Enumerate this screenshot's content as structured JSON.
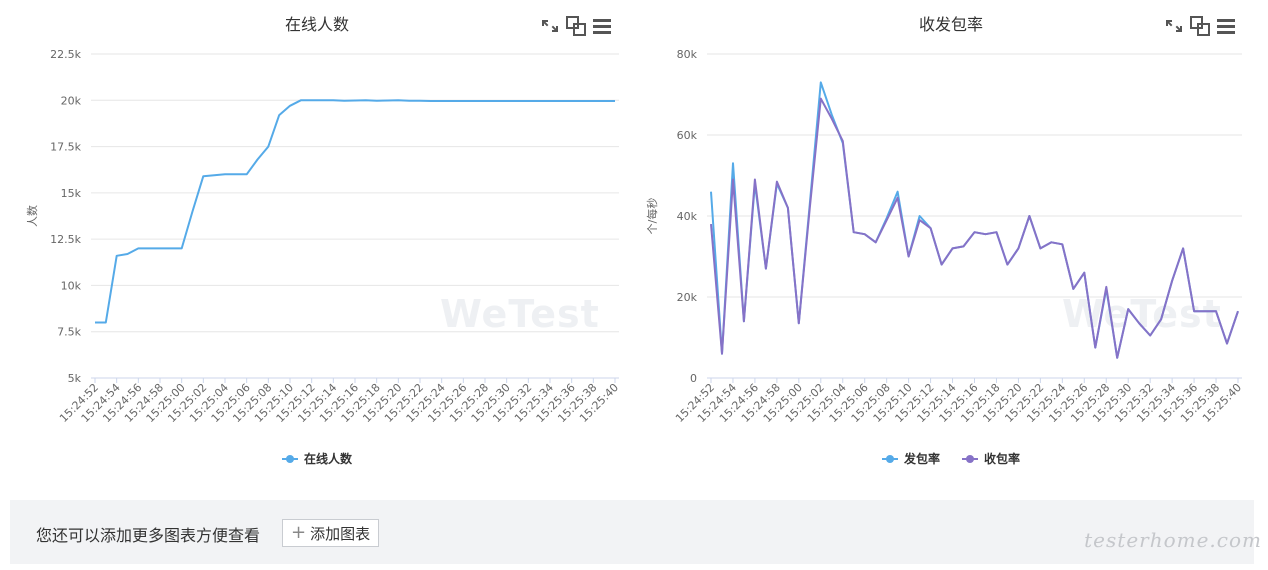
{
  "colors": {
    "blue": "#55aae8",
    "purple": "#8672c7"
  },
  "left": {
    "toolbar_icons": [
      "expand-icon",
      "copy-icon",
      "menu-icon"
    ],
    "watermark": "WeTest"
  },
  "right": {
    "toolbar_icons": [
      "expand-icon",
      "copy-icon",
      "menu-icon"
    ],
    "watermark": "WeTest"
  },
  "bottom": {
    "hint": "您还可以添加更多图表方便查看",
    "add_button": "添加图表",
    "plus_icon": "+"
  },
  "site_watermark": "testerhome.com",
  "chart_data": [
    {
      "type": "line",
      "title": "在线人数",
      "xlabel": "",
      "ylabel": "人数",
      "ylim": [
        5000,
        22500
      ],
      "ytick_labels": [
        "5k",
        "7.5k",
        "10k",
        "12.5k",
        "15k",
        "17.5k",
        "20k",
        "22.5k"
      ],
      "categories": [
        "15:24:52",
        "15:24:54",
        "15:24:56",
        "15:24:58",
        "15:25:00",
        "15:25:02",
        "15:25:04",
        "15:25:06",
        "15:25:08",
        "15:25:10",
        "15:25:12",
        "15:25:14",
        "15:25:16",
        "15:25:18",
        "15:25:20",
        "15:25:22",
        "15:25:24",
        "15:25:26",
        "15:25:28",
        "15:25:30",
        "15:25:32",
        "15:25:34",
        "15:25:36",
        "15:25:38",
        "15:25:40"
      ],
      "x": [
        "15:24:52",
        "15:24:53",
        "15:24:54",
        "15:24:55",
        "15:24:56",
        "15:24:57",
        "15:24:58",
        "15:24:59",
        "15:25:00",
        "15:25:01",
        "15:25:02",
        "15:25:03",
        "15:25:04",
        "15:25:05",
        "15:25:06",
        "15:25:07",
        "15:25:08",
        "15:25:09",
        "15:25:10",
        "15:25:11",
        "15:25:12",
        "15:25:13",
        "15:25:14",
        "15:25:15",
        "15:25:16",
        "15:25:17",
        "15:25:18",
        "15:25:19",
        "15:25:20",
        "15:25:21",
        "15:25:22",
        "15:25:23",
        "15:25:24",
        "15:25:25",
        "15:25:26",
        "15:25:27",
        "15:25:28",
        "15:25:29",
        "15:25:30",
        "15:25:31",
        "15:25:32",
        "15:25:33",
        "15:25:34",
        "15:25:35",
        "15:25:36",
        "15:25:37",
        "15:25:38",
        "15:25:39",
        "15:25:40"
      ],
      "series": [
        {
          "name": "在线人数",
          "color": "#55aae8",
          "values": [
            8000,
            8000,
            11600,
            11700,
            12000,
            12000,
            12000,
            12000,
            12000,
            14000,
            15900,
            15950,
            16000,
            16000,
            16000,
            16800,
            17500,
            19200,
            19700,
            20000,
            20000,
            20000,
            20000,
            19980,
            19990,
            20000,
            19980,
            19990,
            20000,
            19980,
            19970,
            19960,
            19960,
            19960,
            19960,
            19960,
            19960,
            19960,
            19960,
            19960,
            19960,
            19960,
            19960,
            19960,
            19960,
            19960,
            19960,
            19960,
            19960
          ]
        }
      ],
      "legend": "bottom-center"
    },
    {
      "type": "line",
      "title": "收发包率",
      "xlabel": "",
      "ylabel": "个/每秒",
      "ylim": [
        0,
        80000
      ],
      "ytick_labels": [
        "0",
        "20k",
        "40k",
        "60k",
        "80k"
      ],
      "categories": [
        "15:24:52",
        "15:24:54",
        "15:24:56",
        "15:24:58",
        "15:25:00",
        "15:25:02",
        "15:25:04",
        "15:25:06",
        "15:25:08",
        "15:25:10",
        "15:25:12",
        "15:25:14",
        "15:25:16",
        "15:25:18",
        "15:25:20",
        "15:25:22",
        "15:25:24",
        "15:25:26",
        "15:25:28",
        "15:25:30",
        "15:25:32",
        "15:25:34",
        "15:25:36",
        "15:25:38",
        "15:25:40"
      ],
      "x": [
        "15:24:52",
        "15:24:53",
        "15:24:54",
        "15:24:55",
        "15:24:56",
        "15:24:57",
        "15:24:58",
        "15:24:59",
        "15:25:00",
        "15:25:01",
        "15:25:02",
        "15:25:03",
        "15:25:04",
        "15:25:05",
        "15:25:06",
        "15:25:07",
        "15:25:08",
        "15:25:09",
        "15:25:10",
        "15:25:11",
        "15:25:12",
        "15:25:13",
        "15:25:14",
        "15:25:15",
        "15:25:16",
        "15:25:17",
        "15:25:18",
        "15:25:19",
        "15:25:20",
        "15:25:21",
        "15:25:22",
        "15:25:23",
        "15:25:24",
        "15:25:25",
        "15:25:26",
        "15:25:27",
        "15:25:28",
        "15:25:29",
        "15:25:30",
        "15:25:31",
        "15:25:32",
        "15:25:33",
        "15:25:34",
        "15:25:35",
        "15:25:36",
        "15:25:37",
        "15:25:38",
        "15:25:39",
        "15:25:40"
      ],
      "series": [
        {
          "name": "发包率",
          "color": "#55aae8",
          "values": [
            46000,
            6000,
            53000,
            14000,
            48000,
            27000,
            48000,
            42000,
            13500,
            43000,
            73000,
            65000,
            58000,
            36000,
            35500,
            33500,
            39500,
            46000,
            30000,
            40000,
            37000,
            28000,
            32000,
            32500,
            36000,
            35500,
            36000,
            28000,
            32000,
            40000,
            32000,
            33500,
            33000,
            22000,
            26000,
            7500,
            22000,
            5000,
            17000,
            13500,
            10500,
            14500,
            24000,
            32000,
            16500,
            16500,
            16500,
            8500,
            16500
          ]
        },
        {
          "name": "收包率",
          "color": "#8672c7",
          "values": [
            38000,
            6000,
            49000,
            14000,
            49000,
            27000,
            48500,
            42000,
            13500,
            42000,
            69000,
            64000,
            58500,
            36000,
            35500,
            33500,
            39000,
            44500,
            30000,
            39000,
            37000,
            28000,
            32000,
            32500,
            36000,
            35500,
            36000,
            28000,
            32000,
            40000,
            32000,
            33500,
            33000,
            22000,
            26000,
            7500,
            22500,
            5000,
            17000,
            13500,
            10500,
            14500,
            24000,
            32000,
            16500,
            16500,
            16500,
            8500,
            16500
          ]
        }
      ],
      "legend": "bottom-center"
    }
  ]
}
